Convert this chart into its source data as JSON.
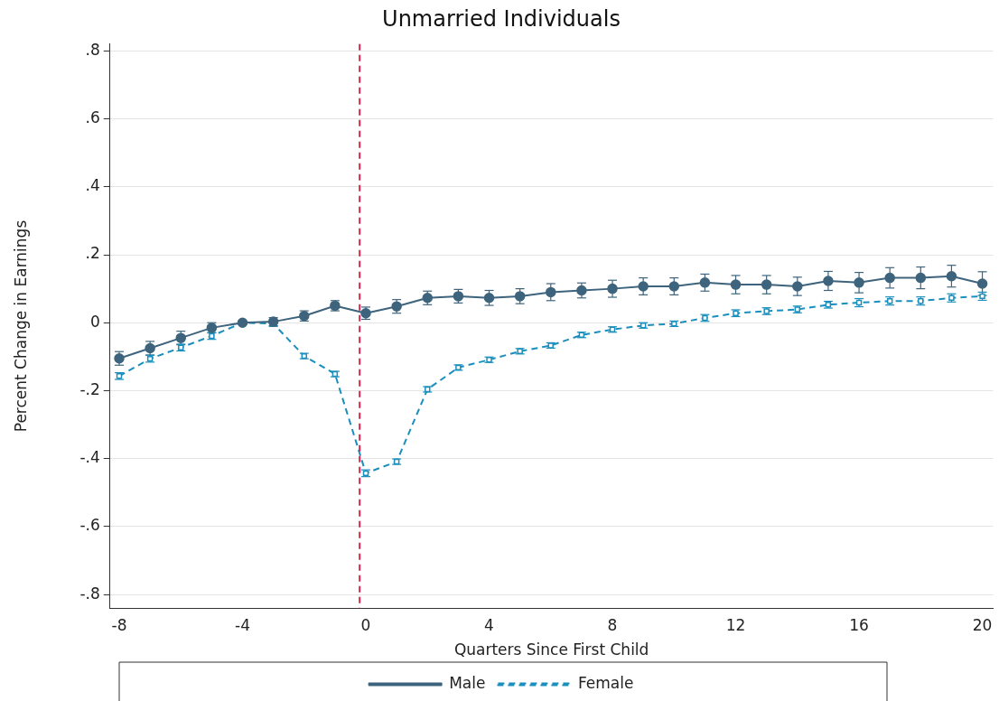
{
  "chart_data": {
    "type": "line",
    "title": "Unmarried Individuals",
    "xlabel": "Quarters Since First Child",
    "ylabel": "Percent Change in Earnings",
    "x": [
      -8,
      -7,
      -6,
      -5,
      -4,
      -3,
      -2,
      -1,
      0,
      1,
      2,
      3,
      4,
      5,
      6,
      7,
      8,
      9,
      10,
      11,
      12,
      13,
      14,
      15,
      16,
      17,
      18,
      19,
      20
    ],
    "series": [
      {
        "name": "Male",
        "color": "#3e647d",
        "marker": "circle",
        "line_style": "solid",
        "values": [
          -0.105,
          -0.075,
          -0.045,
          -0.015,
          0,
          0.003,
          0.02,
          0.05,
          0.028,
          0.048,
          0.073,
          0.078,
          0.073,
          0.078,
          0.09,
          0.095,
          0.1,
          0.107,
          0.107,
          0.118,
          0.112,
          0.112,
          0.107,
          0.123,
          0.118,
          0.132,
          0.132,
          0.137,
          0.115
        ],
        "errors": [
          0.02,
          0.02,
          0.02,
          0.015,
          0.005,
          0.012,
          0.015,
          0.015,
          0.018,
          0.02,
          0.02,
          0.02,
          0.022,
          0.022,
          0.025,
          0.022,
          0.025,
          0.025,
          0.025,
          0.025,
          0.027,
          0.027,
          0.027,
          0.028,
          0.03,
          0.03,
          0.032,
          0.032,
          0.035
        ]
      },
      {
        "name": "Female",
        "color": "#1a8fbd",
        "marker": "square",
        "line_style": "dashed",
        "values": [
          -0.157,
          -0.106,
          -0.073,
          -0.039,
          0,
          -0.003,
          -0.098,
          -0.151,
          -0.443,
          -0.409,
          -0.196,
          -0.132,
          -0.109,
          -0.084,
          -0.067,
          -0.036,
          -0.02,
          -0.008,
          -0.003,
          0.014,
          0.028,
          0.034,
          0.039,
          0.053,
          0.059,
          0.064,
          0.064,
          0.073,
          0.078
        ],
        "errors": [
          0.01,
          0.01,
          0.01,
          0.01,
          0.003,
          0.008,
          0.008,
          0.008,
          0.01,
          0.008,
          0.008,
          0.008,
          0.008,
          0.008,
          0.008,
          0.008,
          0.008,
          0.008,
          0.008,
          0.01,
          0.01,
          0.01,
          0.01,
          0.01,
          0.012,
          0.012,
          0.012,
          0.012,
          0.012
        ]
      }
    ],
    "xlim": [
      -8.3,
      20.35
    ],
    "xticks": [
      -8,
      -4,
      0,
      4,
      8,
      12,
      16,
      20
    ],
    "ylim": [
      -0.84,
      0.82
    ],
    "yticks": [
      {
        "value": -0.8,
        "label": "-.8"
      },
      {
        "value": -0.6,
        "label": "-.6"
      },
      {
        "value": -0.4,
        "label": "-.4"
      },
      {
        "value": -0.2,
        "label": "-.2"
      },
      {
        "value": 0,
        "label": "0"
      },
      {
        "value": 0.2,
        "label": ".2"
      },
      {
        "value": 0.4,
        "label": ".4"
      },
      {
        "value": 0.6,
        "label": ".6"
      },
      {
        "value": 0.8,
        "label": ".8"
      }
    ],
    "grid": "y",
    "legend": "bottom",
    "ref_lines": [
      {
        "axis": "x",
        "value": -0.2,
        "color": "#d6254f",
        "line_style": "dashed"
      }
    ]
  }
}
